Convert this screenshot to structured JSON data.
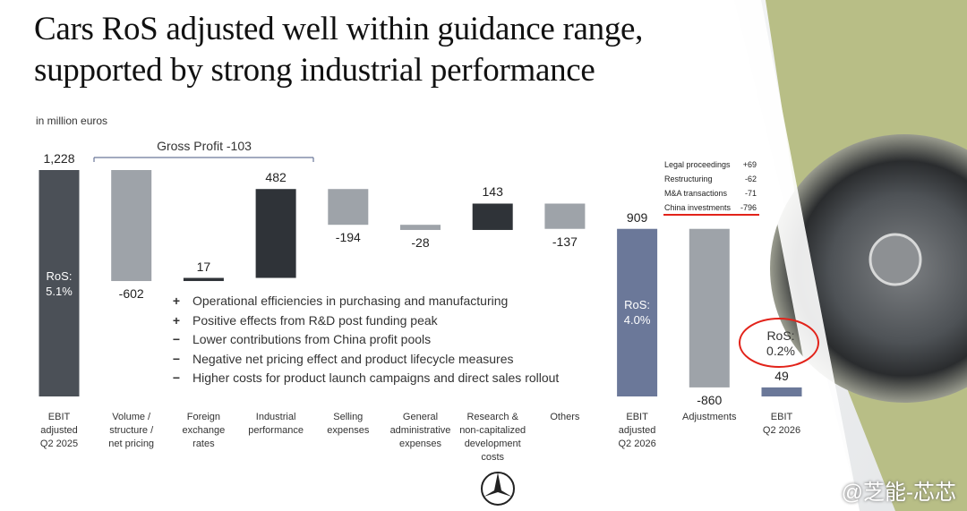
{
  "title": "Cars RoS adjusted well within guidance range,\nsupported by strong industrial performance",
  "chart_data": {
    "type": "waterfall",
    "subtitle": "in million euros",
    "categories": [
      "EBIT\nadjusted\nQ2 2025",
      "Volume /\nstructure /\nnet pricing",
      "Foreign\nexchange\nrates",
      "Industrial\nperformance",
      "Selling\nexpenses",
      "General\nadministrative\nexpenses",
      "Research &\nnon-capitalized\ndevelopment\ncosts",
      "Others",
      "EBIT\nadjusted\nQ2 2026",
      "Adjustments",
      "EBIT\nQ2 2026"
    ],
    "values": [
      1228,
      -602,
      17,
      482,
      -194,
      -28,
      143,
      -137,
      909,
      -860,
      49
    ],
    "value_labels": [
      "1,228",
      "-602",
      "17",
      "482",
      "-194",
      "-28",
      "143",
      "-137",
      "909",
      "-860",
      "49"
    ],
    "measure": [
      "total",
      "relative",
      "relative",
      "relative",
      "relative",
      "relative",
      "relative",
      "relative",
      "total",
      "relative",
      "total"
    ],
    "colors": [
      "#4b5057",
      "#9ea3a9",
      "#2f3338",
      "#2f3338",
      "#9ea3a9",
      "#9ea3a9",
      "#2f3338",
      "#9ea3a9",
      "#6b7899",
      "#9ea3a9",
      "#6b7899"
    ],
    "bar_annotations": [
      "RoS:\n5.1%",
      null,
      null,
      null,
      null,
      null,
      null,
      null,
      "RoS:\n4.0%",
      null,
      null
    ],
    "bracket_label": "Gross Profit -103",
    "callout": "RoS:\n0.2%"
  },
  "bullets": [
    {
      "sign": "+",
      "text": "Operational efficiencies in purchasing and manufacturing"
    },
    {
      "sign": "+",
      "text": "Positive effects from R&D post funding peak"
    },
    {
      "sign": "−",
      "text": "Lower contributions from China profit pools"
    },
    {
      "sign": "−",
      "text": "Negative net pricing effect and product lifecycle measures"
    },
    {
      "sign": "−",
      "text": "Higher costs for product launch campaigns and direct sales rollout"
    }
  ],
  "adjustments_box": [
    {
      "label": "Legal proceedings",
      "value": "+69"
    },
    {
      "label": "Restructuring",
      "value": "-62"
    },
    {
      "label": "M&A transactions",
      "value": "-71"
    },
    {
      "label": "China investments",
      "value": "-796"
    }
  ],
  "watermark": "@芝能-芯芯"
}
